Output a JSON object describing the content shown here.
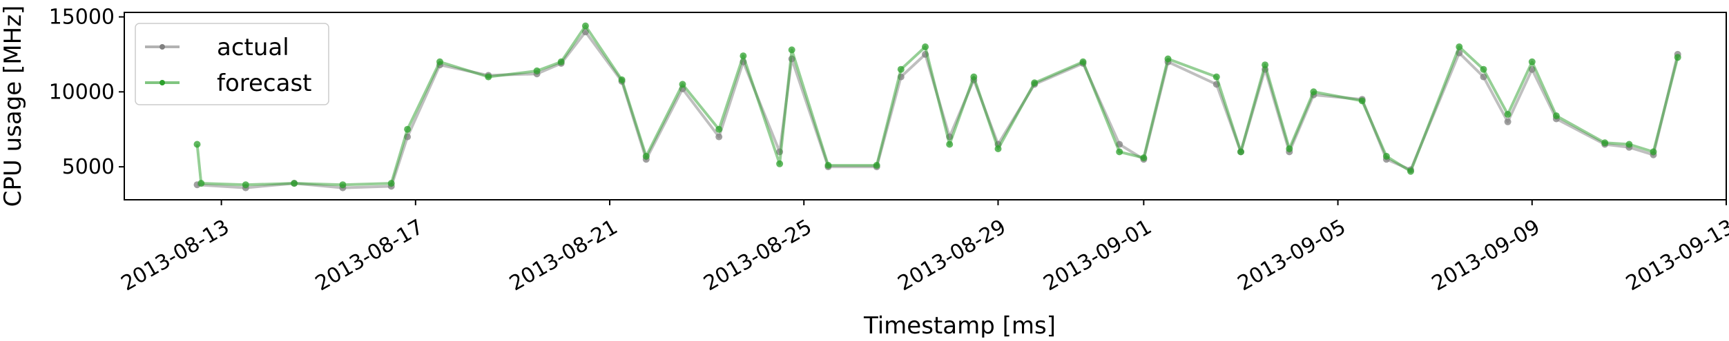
{
  "chart_data": {
    "type": "line",
    "title": "",
    "xlabel": "Timestamp [ms]",
    "ylabel": "CPU usage [MHz]",
    "x_axis": {
      "type": "date",
      "ticks": [
        "2013-08-13",
        "2013-08-17",
        "2013-08-21",
        "2013-08-25",
        "2013-08-29",
        "2013-09-01",
        "2013-09-05",
        "2013-09-09",
        "2013-09-13"
      ],
      "range": [
        "2013-08-11T00:00",
        "2013-09-13T00:00"
      ]
    },
    "y_axis": {
      "ticks": [
        5000,
        10000,
        15000
      ],
      "range": [
        2800,
        15300
      ]
    },
    "legend": {
      "placement": "top-left"
    },
    "series": [
      {
        "name": "actual",
        "color": "#808080",
        "points": [
          [
            "2013-08-12T12:00",
            3800
          ],
          [
            "2013-08-13T12:00",
            3600
          ],
          [
            "2013-08-14T12:00",
            3900
          ],
          [
            "2013-08-15T12:00",
            3600
          ],
          [
            "2013-08-16T12:00",
            3700
          ],
          [
            "2013-08-16T20:00",
            7000
          ],
          [
            "2013-08-17T12:00",
            11800
          ],
          [
            "2013-08-18T12:00",
            11100
          ],
          [
            "2013-08-19T12:00",
            11200
          ],
          [
            "2013-08-20T00:00",
            11900
          ],
          [
            "2013-08-20T12:00",
            14000
          ],
          [
            "2013-08-21T06:00",
            10700
          ],
          [
            "2013-08-21T18:00",
            5500
          ],
          [
            "2013-08-22T12:00",
            10200
          ],
          [
            "2013-08-23T06:00",
            7000
          ],
          [
            "2013-08-23T18:00",
            12000
          ],
          [
            "2013-08-24T12:00",
            6000
          ],
          [
            "2013-08-24T18:00",
            12200
          ],
          [
            "2013-08-25T12:00",
            5000
          ],
          [
            "2013-08-26T12:00",
            5000
          ],
          [
            "2013-08-27T00:00",
            11000
          ],
          [
            "2013-08-27T12:00",
            12500
          ],
          [
            "2013-08-28T00:00",
            7000
          ],
          [
            "2013-08-28T12:00",
            10800
          ],
          [
            "2013-08-29T00:00",
            6500
          ],
          [
            "2013-08-29T18:00",
            10500
          ],
          [
            "2013-08-30T18:00",
            11900
          ],
          [
            "2013-08-31T12:00",
            6500
          ],
          [
            "2013-09-01T00:00",
            5500
          ],
          [
            "2013-09-01T12:00",
            12000
          ],
          [
            "2013-09-02T12:00",
            10500
          ],
          [
            "2013-09-03T00:00",
            6000
          ],
          [
            "2013-09-03T12:00",
            11500
          ],
          [
            "2013-09-04T00:00",
            6000
          ],
          [
            "2013-09-04T12:00",
            9800
          ],
          [
            "2013-09-05T12:00",
            9500
          ],
          [
            "2013-09-06T00:00",
            5500
          ],
          [
            "2013-09-06T12:00",
            4800
          ],
          [
            "2013-09-07T12:00",
            12600
          ],
          [
            "2013-09-08T00:00",
            11000
          ],
          [
            "2013-09-08T12:00",
            8000
          ],
          [
            "2013-09-09T00:00",
            11500
          ],
          [
            "2013-09-09T12:00",
            8200
          ],
          [
            "2013-09-10T12:00",
            6500
          ],
          [
            "2013-09-11T00:00",
            6300
          ],
          [
            "2013-09-11T12:00",
            5800
          ],
          [
            "2013-09-12T00:00",
            12500
          ]
        ]
      },
      {
        "name": "forecast",
        "color": "#2ca02c",
        "points": [
          [
            "2013-08-12T12:00",
            6500
          ],
          [
            "2013-08-12T14:00",
            3900
          ],
          [
            "2013-08-13T12:00",
            3800
          ],
          [
            "2013-08-14T12:00",
            3900
          ],
          [
            "2013-08-15T12:00",
            3800
          ],
          [
            "2013-08-16T12:00",
            3900
          ],
          [
            "2013-08-16T20:00",
            7500
          ],
          [
            "2013-08-17T12:00",
            12000
          ],
          [
            "2013-08-18T12:00",
            11000
          ],
          [
            "2013-08-19T12:00",
            11400
          ],
          [
            "2013-08-20T00:00",
            12000
          ],
          [
            "2013-08-20T12:00",
            14400
          ],
          [
            "2013-08-21T06:00",
            10800
          ],
          [
            "2013-08-21T18:00",
            5700
          ],
          [
            "2013-08-22T12:00",
            10500
          ],
          [
            "2013-08-23T06:00",
            7500
          ],
          [
            "2013-08-23T18:00",
            12400
          ],
          [
            "2013-08-24T12:00",
            5200
          ],
          [
            "2013-08-24T18:00",
            12800
          ],
          [
            "2013-08-25T12:00",
            5100
          ],
          [
            "2013-08-26T12:00",
            5100
          ],
          [
            "2013-08-27T00:00",
            11500
          ],
          [
            "2013-08-27T12:00",
            13000
          ],
          [
            "2013-08-28T00:00",
            6500
          ],
          [
            "2013-08-28T12:00",
            11000
          ],
          [
            "2013-08-29T00:00",
            6200
          ],
          [
            "2013-08-29T18:00",
            10600
          ],
          [
            "2013-08-30T18:00",
            12000
          ],
          [
            "2013-08-31T12:00",
            6000
          ],
          [
            "2013-09-01T00:00",
            5600
          ],
          [
            "2013-09-01T12:00",
            12200
          ],
          [
            "2013-09-02T12:00",
            11000
          ],
          [
            "2013-09-03T00:00",
            6000
          ],
          [
            "2013-09-03T12:00",
            11800
          ],
          [
            "2013-09-04T00:00",
            6200
          ],
          [
            "2013-09-04T12:00",
            10000
          ],
          [
            "2013-09-05T12:00",
            9400
          ],
          [
            "2013-09-06T00:00",
            5700
          ],
          [
            "2013-09-06T12:00",
            4700
          ],
          [
            "2013-09-07T12:00",
            13000
          ],
          [
            "2013-09-08T00:00",
            11500
          ],
          [
            "2013-09-08T12:00",
            8500
          ],
          [
            "2013-09-09T00:00",
            12000
          ],
          [
            "2013-09-09T12:00",
            8400
          ],
          [
            "2013-09-10T12:00",
            6600
          ],
          [
            "2013-09-11T00:00",
            6500
          ],
          [
            "2013-09-11T12:00",
            6000
          ],
          [
            "2013-09-12T00:00",
            12300
          ]
        ]
      }
    ]
  }
}
